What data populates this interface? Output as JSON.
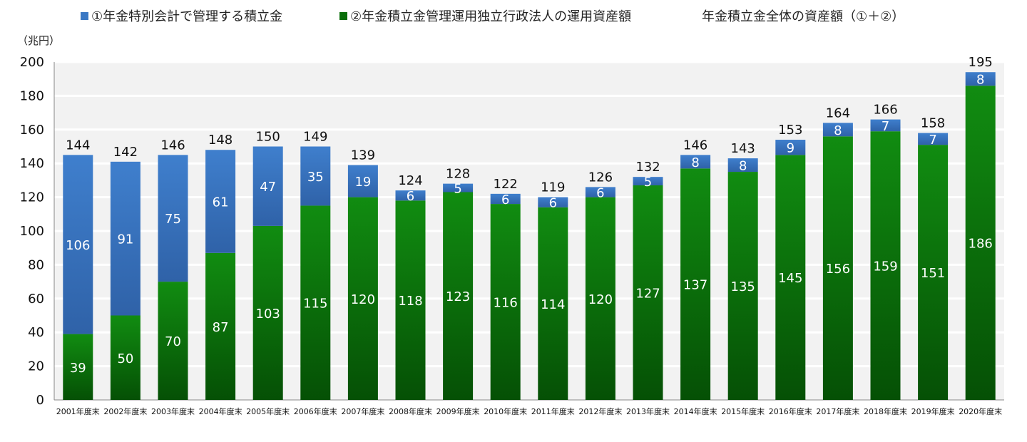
{
  "chart_data": {
    "type": "bar",
    "stacked": true,
    "unit": "（兆円）",
    "categories": [
      "2001年度末",
      "2002年度末",
      "2003年度末",
      "2004年度末",
      "2005年度末",
      "2006年度末",
      "2007年度末",
      "2008年度末",
      "2009年度末",
      "2010年度末",
      "2011年度末",
      "2012年度末",
      "2013年度末",
      "2014年度末",
      "2015年度末",
      "2016年度末",
      "2017年度末",
      "2018年度末",
      "2019年度末",
      "2020年度末"
    ],
    "series": [
      {
        "name": "②年金積立金管理運用独立行政法人の運用資産額",
        "color": "#0a6e0a",
        "values": [
          39,
          50,
          70,
          87,
          103,
          115,
          120,
          118,
          123,
          116,
          114,
          120,
          127,
          137,
          135,
          145,
          156,
          159,
          151,
          186
        ]
      },
      {
        "name": "①年金特別会計で管理する積立金",
        "color": "#3a78c4",
        "values": [
          106,
          91,
          75,
          61,
          47,
          35,
          19,
          6,
          5,
          6,
          6,
          6,
          5,
          8,
          8,
          9,
          8,
          7,
          7,
          8
        ]
      }
    ],
    "totals_label": "年金積立金全体の資産額（①＋②）",
    "totals": [
      144,
      142,
      146,
      148,
      150,
      149,
      139,
      124,
      128,
      122,
      119,
      126,
      132,
      146,
      143,
      153,
      164,
      166,
      158,
      195
    ],
    "ylim": [
      0,
      200
    ],
    "yticks": [
      0,
      20,
      40,
      60,
      80,
      100,
      120,
      140,
      160,
      180,
      200
    ],
    "grid": true,
    "legend_position": "top"
  }
}
